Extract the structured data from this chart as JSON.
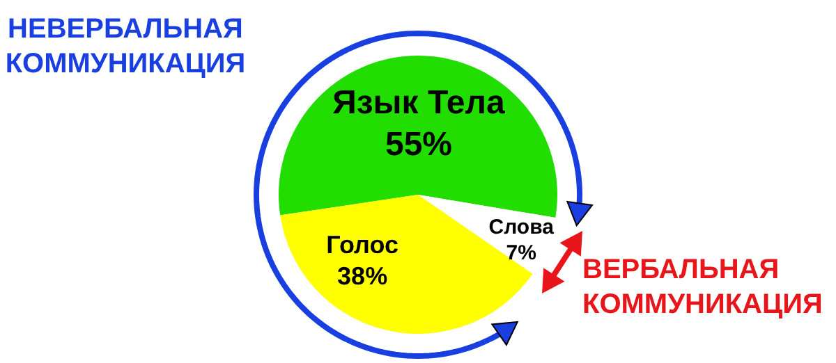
{
  "chart_data": {
    "type": "pie",
    "categories": [
      "Язык Тела",
      "Слова",
      "Голос"
    ],
    "values": [
      55,
      7,
      38
    ],
    "value_labels": [
      "55%",
      "7%",
      "38%"
    ],
    "colors": [
      "#22dd00",
      "#ffffff",
      "#ffff00"
    ],
    "annotations": [
      "НЕВЕРБАЛЬНАЯ КОММУНИКАЦИЯ",
      "ВЕРБАЛЬНАЯ КОММУНИКАЦИЯ"
    ]
  }
}
